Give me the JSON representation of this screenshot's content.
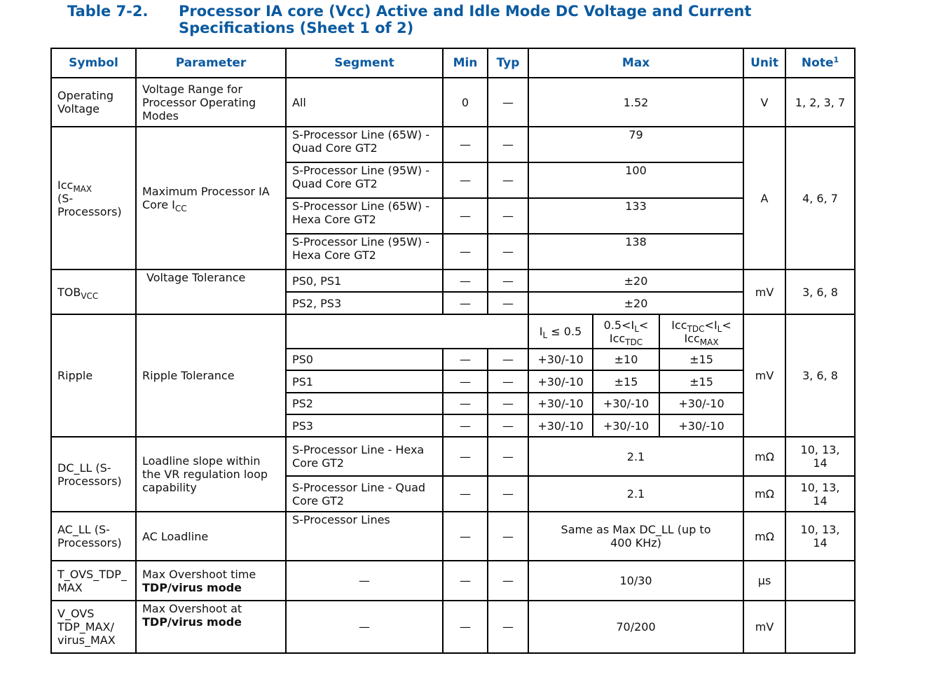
{
  "title": {
    "number": "Table 7-2.",
    "text": "Processor IA core (Vcc) Active and Idle Mode DC Voltage and Current Specifications (Sheet 1 of 2)"
  },
  "headers": {
    "symbol": "Symbol",
    "parameter": "Parameter",
    "segment": "Segment",
    "min": "Min",
    "typ": "Typ",
    "max": "Max",
    "unit": "Unit",
    "note": "Note",
    "note_sup": "1"
  },
  "dash": "—",
  "opv": {
    "symbol": "Operating Voltage",
    "parameter": "Voltage Range for Processor Operating Modes",
    "segment": "All",
    "min": "0",
    "max": "1.52",
    "unit": "V",
    "note": "1, 2, 3, 7"
  },
  "icc": {
    "symbol_base": "Icc",
    "symbol_sub": "MAX",
    "symbol_rest": "(S-Processors)",
    "param_base": "Maximum Processor IA Core I",
    "param_sub": "CC",
    "unit": "A",
    "note": "4, 6, 7",
    "rows": [
      {
        "segment": "S-Processor Line (65W) - Quad Core GT2",
        "max": "79"
      },
      {
        "segment": "S-Processor Line (95W) - Quad Core GT2",
        "max": "100"
      },
      {
        "segment": "S-Processor Line (65W) - Hexa Core GT2",
        "max": "133"
      },
      {
        "segment": "S-Processor Line (95W) - Hexa Core GT2",
        "max": "138"
      }
    ]
  },
  "tob": {
    "symbol_base": "TOB",
    "symbol_sub": "VCC",
    "parameter": "Voltage Tolerance",
    "unit": "mV",
    "note": "3, 6, 8",
    "rows": [
      {
        "segment": "PS0, PS1",
        "max": "±20"
      },
      {
        "segment": "PS2, PS3",
        "max": "±20"
      }
    ]
  },
  "ripple": {
    "symbol": "Ripple",
    "parameter": "Ripple Tolerance",
    "unit": "mV",
    "note": "3, 6, 8",
    "sub_headers": {
      "a_pre": "I",
      "a_sub": "L",
      "a_post": " ≤ 0.5",
      "b_pre": "0.5<I",
      "b_sub": "L",
      "b_post": "<",
      "b2_base": "Icc",
      "b2_sub": "TDC",
      "c_base": "Icc",
      "c_sub": "TDC",
      "c_post": "<I",
      "c_sub2": "L",
      "c_post2": "<",
      "c2_base": "Icc",
      "c2_sub": "MAX"
    },
    "rows": [
      {
        "segment": "PS0",
        "a": "+30/-10",
        "b": "±10",
        "c": "±15"
      },
      {
        "segment": "PS1",
        "a": "+30/-10",
        "b": "±15",
        "c": "±15"
      },
      {
        "segment": "PS2",
        "a": "+30/-10",
        "b": "+30/-10",
        "c": "+30/-10"
      },
      {
        "segment": "PS3",
        "a": "+30/-10",
        "b": "+30/-10",
        "c": "+30/-10"
      }
    ]
  },
  "dcll": {
    "symbol": "DC_LL (S-Processors)",
    "parameter": "Loadline slope within the VR regulation loop capability",
    "rows": [
      {
        "segment": "S-Processor Line - Hexa Core GT2",
        "max": "2.1",
        "unit": "mΩ",
        "note": "10, 13, 14"
      },
      {
        "segment": "S-Processor Line - Quad Core GT2",
        "max": "2.1",
        "unit": "mΩ",
        "note": "10, 13, 14"
      }
    ]
  },
  "acll": {
    "symbol": "AC_LL (S-Processors)",
    "parameter": "AC Loadline",
    "segment": "S-Processor Lines",
    "max": "Same as Max DC_LL (up to 400 KHz)",
    "unit": "mΩ",
    "note": "10, 13, 14"
  },
  "tovs": {
    "symbol": "T_OVS_TDP_MAX",
    "param_line1": "Max Overshoot time",
    "param_bold": "TDP/virus mode",
    "max": "10/30",
    "unit": "µs",
    "note": ""
  },
  "vovs": {
    "symbol": "V_OVS TDP_MAX/ virus_MAX",
    "param_line1": "Max Overshoot at",
    "param_bold": "TDP/virus mode",
    "max": "70/200",
    "unit": "mV",
    "note": ""
  }
}
